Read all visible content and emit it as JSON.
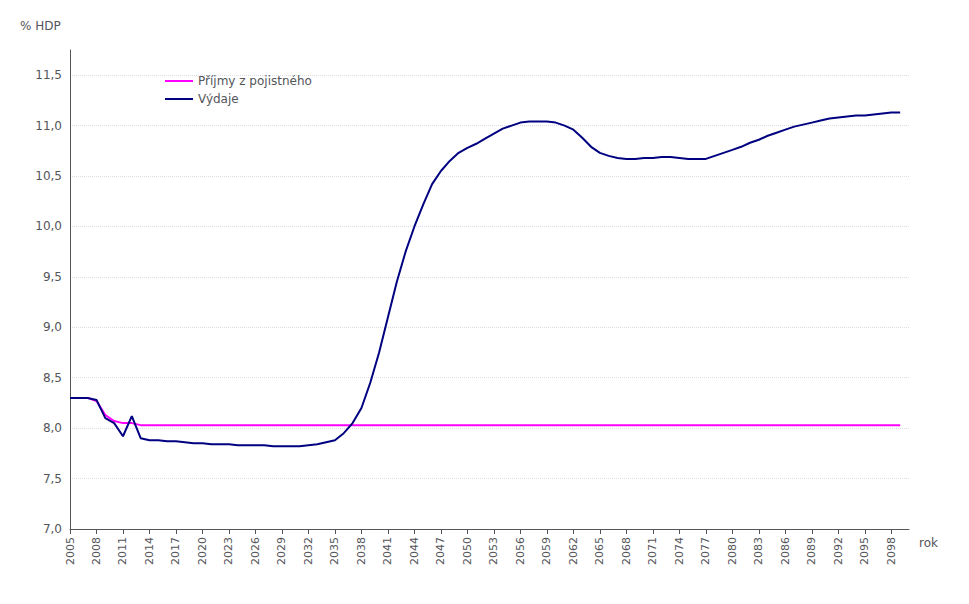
{
  "chart_data": {
    "type": "line",
    "xlabel": "rok",
    "ylabel": "% HDP",
    "xlim": [
      2005,
      2100
    ],
    "xticks": [
      2005,
      2008,
      2011,
      2014,
      2017,
      2020,
      2023,
      2026,
      2029,
      2032,
      2035,
      2038,
      2041,
      2044,
      2047,
      2050,
      2053,
      2056,
      2059,
      2062,
      2065,
      2068,
      2071,
      2074,
      2077,
      2080,
      2083,
      2086,
      2089,
      2092,
      2095,
      2098
    ],
    "ylim": [
      7.0,
      11.75
    ],
    "yticks": [
      {
        "value": 7.0,
        "label": "7,0"
      },
      {
        "value": 7.5,
        "label": "7,5"
      },
      {
        "value": 8.0,
        "label": "8,0"
      },
      {
        "value": 8.5,
        "label": "8,5"
      },
      {
        "value": 9.0,
        "label": "9,0"
      },
      {
        "value": 9.5,
        "label": "9,5"
      },
      {
        "value": 10.0,
        "label": "10,0"
      },
      {
        "value": 10.5,
        "label": "10,5"
      },
      {
        "value": 11.0,
        "label": "11,0"
      },
      {
        "value": 11.5,
        "label": "11,5"
      }
    ],
    "grid": true,
    "legend": "upper left",
    "series": [
      {
        "name": "Příjmy z pojistného",
        "color": "#ff00ff",
        "x": [
          2005,
          2006,
          2007,
          2008,
          2009,
          2010,
          2011,
          2012,
          2013,
          2014,
          2015,
          2016,
          2017,
          2018,
          2019,
          2020,
          2021,
          2022,
          2023,
          2024,
          2025,
          2030,
          2035,
          2040,
          2045,
          2050,
          2055,
          2060,
          2065,
          2070,
          2075,
          2080,
          2085,
          2090,
          2095,
          2099
        ],
        "values": [
          8.3,
          8.3,
          8.3,
          8.27,
          8.13,
          8.07,
          8.05,
          8.05,
          8.03,
          8.03,
          8.03,
          8.03,
          8.03,
          8.03,
          8.03,
          8.03,
          8.03,
          8.03,
          8.03,
          8.03,
          8.03,
          8.03,
          8.03,
          8.03,
          8.03,
          8.03,
          8.03,
          8.03,
          8.03,
          8.03,
          8.03,
          8.03,
          8.03,
          8.03,
          8.03,
          8.03
        ]
      },
      {
        "name": "Výdaje",
        "color": "#000080",
        "x": [
          2005,
          2006,
          2007,
          2008,
          2009,
          2010,
          2011,
          2012,
          2013,
          2014,
          2015,
          2016,
          2017,
          2018,
          2019,
          2020,
          2021,
          2022,
          2023,
          2024,
          2025,
          2026,
          2027,
          2028,
          2029,
          2030,
          2031,
          2032,
          2033,
          2034,
          2035,
          2036,
          2037,
          2038,
          2039,
          2040,
          2041,
          2042,
          2043,
          2044,
          2045,
          2046,
          2047,
          2048,
          2049,
          2050,
          2051,
          2052,
          2053,
          2054,
          2055,
          2056,
          2057,
          2058,
          2059,
          2060,
          2061,
          2062,
          2063,
          2064,
          2065,
          2066,
          2067,
          2068,
          2069,
          2070,
          2071,
          2072,
          2073,
          2074,
          2075,
          2076,
          2077,
          2078,
          2079,
          2080,
          2081,
          2082,
          2083,
          2084,
          2085,
          2086,
          2087,
          2088,
          2089,
          2090,
          2091,
          2092,
          2093,
          2094,
          2095,
          2096,
          2097,
          2098,
          2099
        ],
        "values": [
          8.3,
          8.3,
          8.3,
          8.28,
          8.1,
          8.05,
          7.92,
          8.12,
          7.9,
          7.88,
          7.88,
          7.87,
          7.87,
          7.86,
          7.85,
          7.85,
          7.84,
          7.84,
          7.84,
          7.83,
          7.83,
          7.83,
          7.83,
          7.82,
          7.82,
          7.82,
          7.82,
          7.83,
          7.84,
          7.86,
          7.88,
          7.95,
          8.05,
          8.2,
          8.45,
          8.75,
          9.1,
          9.45,
          9.75,
          10.0,
          10.22,
          10.42,
          10.55,
          10.65,
          10.73,
          10.78,
          10.82,
          10.87,
          10.92,
          10.97,
          11.0,
          11.03,
          11.04,
          11.04,
          11.04,
          11.03,
          11.0,
          10.96,
          10.88,
          10.79,
          10.73,
          10.7,
          10.68,
          10.67,
          10.67,
          10.68,
          10.68,
          10.69,
          10.69,
          10.68,
          10.67,
          10.67,
          10.67,
          10.7,
          10.73,
          10.76,
          10.79,
          10.83,
          10.86,
          10.9,
          10.93,
          10.96,
          10.99,
          11.01,
          11.03,
          11.05,
          11.07,
          11.08,
          11.09,
          11.1,
          11.1,
          11.11,
          11.12,
          11.13,
          11.13
        ]
      }
    ]
  }
}
